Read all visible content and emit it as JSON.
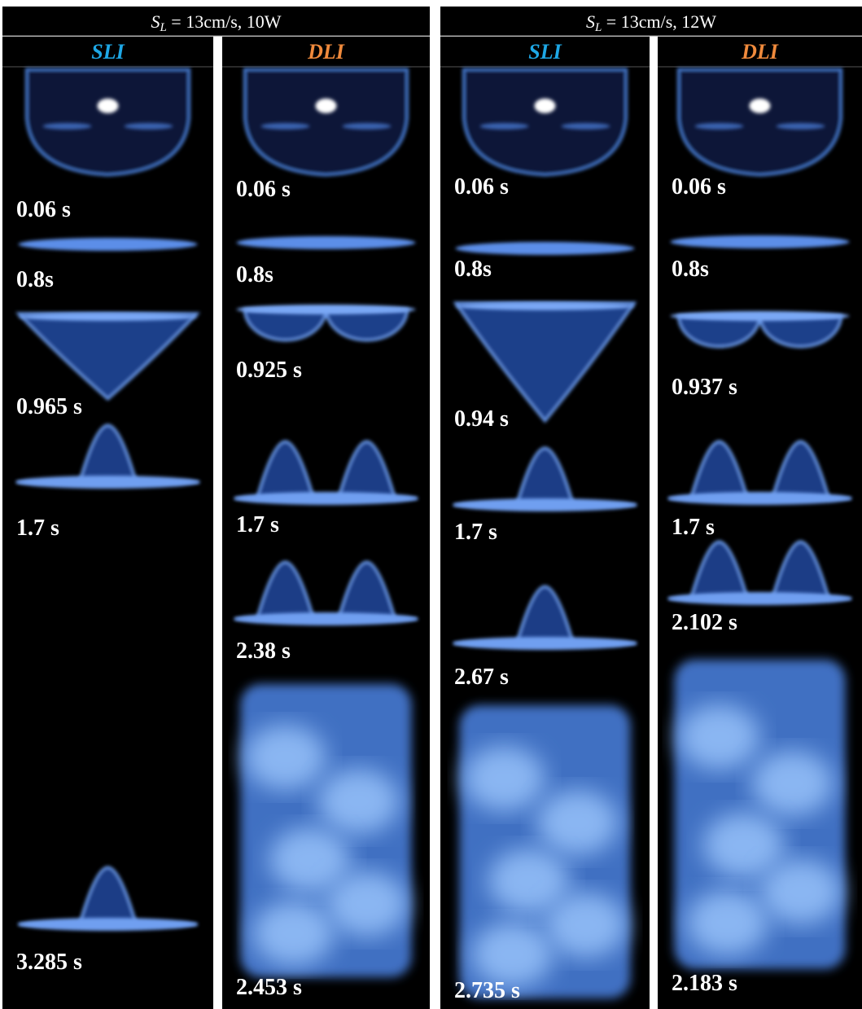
{
  "panels": [
    {
      "header": {
        "symbol": "S",
        "subscript": "L",
        "text": " = 13cm/s, 10W"
      },
      "columns": [
        {
          "label": "SLI",
          "frames": [
            "0.06 s",
            "0.8s",
            "0.965 s",
            "1.7 s",
            "3.285 s"
          ]
        },
        {
          "label": "DLI",
          "frames": [
            "0.06 s",
            "0.8s",
            "0.925 s",
            "1.7 s",
            "2.38 s",
            "2.453 s"
          ]
        }
      ]
    },
    {
      "header": {
        "symbol": "S",
        "subscript": "L",
        "text": " = 13cm/s, 12W"
      },
      "columns": [
        {
          "label": "SLI",
          "frames": [
            "0.06 s",
            "0.8s",
            "0.94 s",
            "1.7 s",
            "2.67 s",
            "2.735 s"
          ]
        },
        {
          "label": "DLI",
          "frames": [
            "0.06 s",
            "0.8s",
            "0.937 s",
            "1.7 s",
            "2.102 s",
            "2.183 s"
          ]
        }
      ]
    }
  ]
}
